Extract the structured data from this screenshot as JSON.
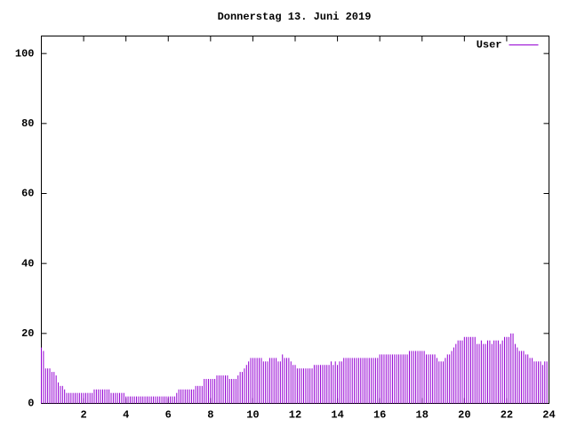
{
  "chart_data": {
    "type": "impulse",
    "title": "Donnerstag 13. Juni 2019",
    "x": [
      0,
      0.1,
      0.2,
      0.3,
      0.4,
      0.5,
      0.6,
      0.7,
      0.8,
      0.9,
      1,
      1.1,
      1.2,
      1.3,
      1.4,
      1.5,
      1.6,
      1.7,
      1.8,
      1.9,
      2,
      2.1,
      2.2,
      2.3,
      2.4,
      2.5,
      2.6,
      2.7,
      2.8,
      2.9,
      3,
      3.1,
      3.2,
      3.3,
      3.4,
      3.5,
      3.6,
      3.7,
      3.8,
      3.9,
      4,
      4.1,
      4.2,
      4.3,
      4.4,
      4.5,
      4.6,
      4.7,
      4.8,
      4.9,
      5,
      5.1,
      5.2,
      5.3,
      5.4,
      5.5,
      5.6,
      5.7,
      5.8,
      5.9,
      6,
      6.1,
      6.2,
      6.3,
      6.4,
      6.5,
      6.6,
      6.7,
      6.8,
      6.9,
      7,
      7.1,
      7.2,
      7.3,
      7.4,
      7.5,
      7.6,
      7.7,
      7.8,
      7.9,
      8,
      8.1,
      8.2,
      8.3,
      8.4,
      8.5,
      8.6,
      8.7,
      8.8,
      8.9,
      9,
      9.1,
      9.2,
      9.3,
      9.4,
      9.5,
      9.6,
      9.7,
      9.8,
      9.9,
      10,
      10.1,
      10.2,
      10.3,
      10.4,
      10.5,
      10.6,
      10.7,
      10.8,
      10.9,
      11,
      11.1,
      11.2,
      11.3,
      11.4,
      11.5,
      11.6,
      11.7,
      11.8,
      11.9,
      12,
      12.1,
      12.2,
      12.3,
      12.4,
      12.5,
      12.6,
      12.7,
      12.8,
      12.9,
      13,
      13.1,
      13.2,
      13.3,
      13.4,
      13.5,
      13.6,
      13.7,
      13.8,
      13.9,
      14,
      14.1,
      14.2,
      14.3,
      14.4,
      14.5,
      14.6,
      14.7,
      14.8,
      14.9,
      15,
      15.1,
      15.2,
      15.3,
      15.4,
      15.5,
      15.6,
      15.7,
      15.8,
      15.9,
      16,
      16.1,
      16.2,
      16.3,
      16.4,
      16.5,
      16.6,
      16.7,
      16.8,
      16.9,
      17,
      17.1,
      17.2,
      17.3,
      17.4,
      17.5,
      17.6,
      17.7,
      17.8,
      17.9,
      18,
      18.1,
      18.2,
      18.3,
      18.4,
      18.5,
      18.6,
      18.7,
      18.8,
      18.9,
      19,
      19.1,
      19.2,
      19.3,
      19.4,
      19.5,
      19.6,
      19.7,
      19.8,
      19.9,
      20,
      20.1,
      20.2,
      20.3,
      20.4,
      20.5,
      20.6,
      20.7,
      20.8,
      20.9,
      21,
      21.1,
      21.2,
      21.3,
      21.4,
      21.5,
      21.6,
      21.7,
      21.8,
      21.9,
      22,
      22.1,
      22.2,
      22.3,
      22.4,
      22.5,
      22.6,
      22.7,
      22.8,
      22.9,
      23,
      23.1,
      23.2,
      23.3,
      23.4,
      23.5,
      23.6,
      23.7,
      23.8,
      23.9
    ],
    "series": [
      {
        "name": "User",
        "color": "#9400d3",
        "values": [
          16,
          15,
          10,
          10,
          10,
          9,
          9,
          8,
          6,
          5,
          5,
          4,
          3,
          3,
          3,
          3,
          3,
          3,
          3,
          3,
          3,
          3,
          3,
          3,
          3,
          4,
          4,
          4,
          4,
          4,
          4,
          4,
          4,
          3,
          3,
          3,
          3,
          3,
          3,
          3,
          2,
          2,
          2,
          2,
          2,
          2,
          2,
          2,
          2,
          2,
          2,
          2,
          2,
          2,
          2,
          2,
          2,
          2,
          2,
          2,
          2,
          2,
          2,
          2,
          3,
          4,
          4,
          4,
          4,
          4,
          4,
          4,
          4,
          5,
          5,
          5,
          5,
          7,
          7,
          7,
          7,
          7,
          7,
          8,
          8,
          8,
          8,
          8,
          8,
          7,
          7,
          7,
          7,
          8,
          9,
          9,
          10,
          11,
          12,
          13,
          13,
          13,
          13,
          13,
          13,
          12,
          12,
          12,
          13,
          13,
          13,
          13,
          12,
          12,
          14,
          13,
          13,
          13,
          12,
          11,
          11,
          10,
          10,
          10,
          10,
          10,
          10,
          10,
          10,
          11,
          11,
          11,
          11,
          11,
          11,
          11,
          11,
          12,
          11,
          12,
          11,
          12,
          12,
          13,
          13,
          13,
          13,
          13,
          13,
          13,
          13,
          13,
          13,
          13,
          13,
          13,
          13,
          13,
          13,
          13,
          14,
          14,
          14,
          14,
          14,
          14,
          14,
          14,
          14,
          14,
          14,
          14,
          14,
          14,
          15,
          15,
          15,
          15,
          15,
          15,
          15,
          15,
          14,
          14,
          14,
          14,
          14,
          13,
          12,
          12,
          12,
          13,
          14,
          14,
          15,
          16,
          17,
          18,
          18,
          18,
          19,
          19,
          19,
          19,
          19,
          19,
          17,
          17,
          18,
          17,
          17,
          18,
          18,
          17,
          18,
          18,
          18,
          17,
          18,
          19,
          19,
          19,
          20,
          20,
          17,
          16,
          15,
          15,
          15,
          14,
          14,
          13,
          13,
          12,
          12,
          12,
          12,
          11,
          12,
          12
        ]
      }
    ],
    "xlim": [
      0,
      24
    ],
    "xticks": [
      2,
      4,
      6,
      8,
      10,
      12,
      14,
      16,
      18,
      20,
      22,
      24
    ],
    "ylim": [
      0,
      105
    ],
    "yticks": [
      0,
      20,
      40,
      60,
      80,
      100
    ],
    "grid": false,
    "legend": "top-right"
  }
}
